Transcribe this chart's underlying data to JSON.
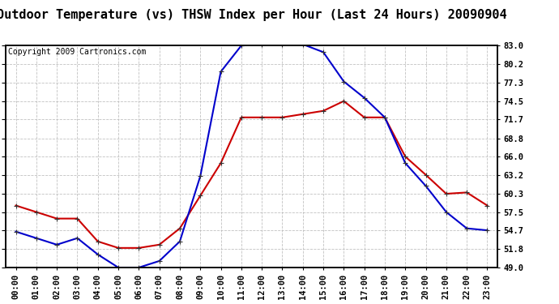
{
  "title": "Outdoor Temperature (vs) THSW Index per Hour (Last 24 Hours) 20090904",
  "copyright": "Copyright 2009 Cartronics.com",
  "hours": [
    "00:00",
    "01:00",
    "02:00",
    "03:00",
    "04:00",
    "05:00",
    "06:00",
    "07:00",
    "08:00",
    "09:00",
    "10:00",
    "11:00",
    "12:00",
    "13:00",
    "14:00",
    "15:00",
    "16:00",
    "17:00",
    "18:00",
    "19:00",
    "20:00",
    "21:00",
    "22:00",
    "23:00"
  ],
  "temp": [
    58.5,
    57.5,
    56.5,
    56.5,
    53.0,
    52.0,
    52.0,
    52.5,
    55.0,
    60.0,
    65.0,
    72.0,
    72.0,
    72.0,
    72.5,
    73.0,
    74.5,
    72.0,
    72.0,
    66.0,
    63.2,
    60.3,
    60.5,
    58.5
  ],
  "thsw": [
    54.5,
    53.5,
    52.5,
    53.5,
    51.0,
    49.0,
    49.0,
    50.0,
    53.0,
    63.0,
    79.0,
    83.0,
    83.2,
    83.2,
    83.2,
    82.0,
    77.5,
    75.0,
    72.0,
    65.0,
    61.5,
    57.5,
    55.0,
    54.7
  ],
  "temp_color": "#cc0000",
  "thsw_color": "#0000cc",
  "background_color": "#ffffff",
  "plot_bg": "#ffffff",
  "grid_color": "#bbbbbb",
  "ymin": 49.0,
  "ymax": 83.0,
  "yticks": [
    49.0,
    51.8,
    54.7,
    57.5,
    60.3,
    63.2,
    66.0,
    68.8,
    71.7,
    74.5,
    77.3,
    80.2,
    83.0
  ],
  "title_fontsize": 11,
  "copyright_fontsize": 7,
  "tick_fontsize": 7.5,
  "marker": "+",
  "markersize": 5,
  "linewidth": 1.5
}
